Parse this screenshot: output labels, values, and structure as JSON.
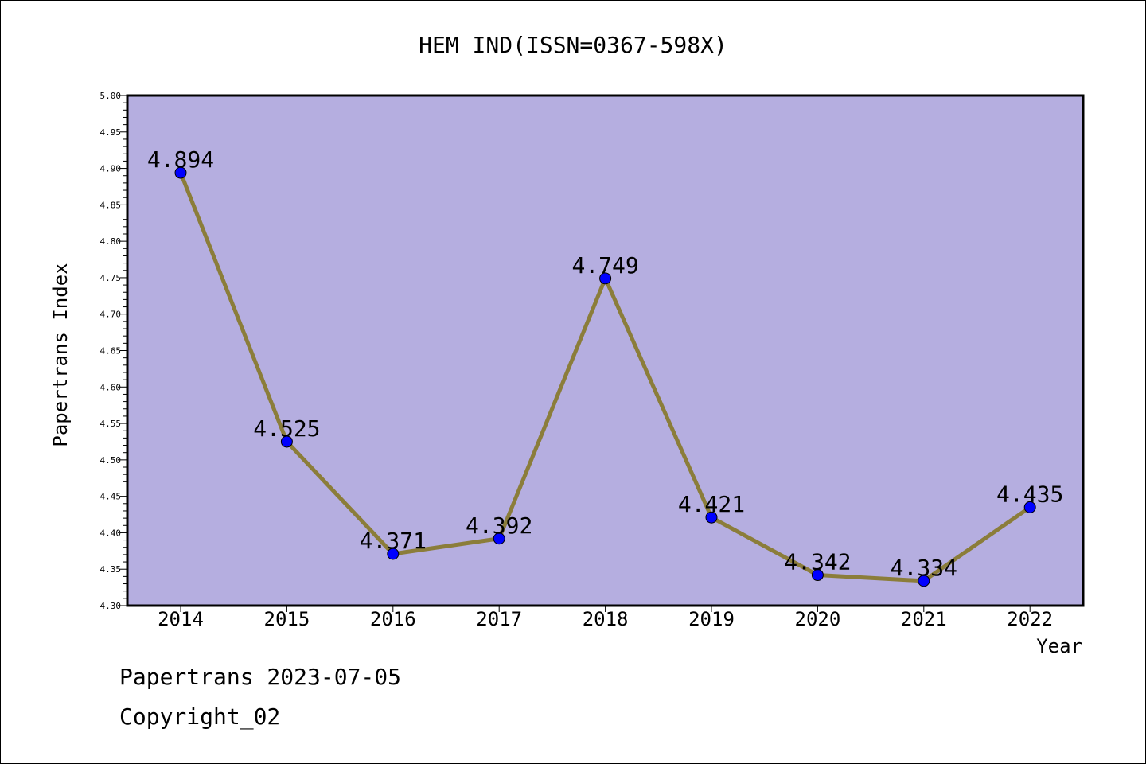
{
  "chart_data": {
    "type": "line",
    "title": "HEM IND(ISSN=0367-598X)",
    "xlabel": "Year",
    "ylabel": "Papertrans Index",
    "categories": [
      "2014",
      "2015",
      "2016",
      "2017",
      "2018",
      "2019",
      "2020",
      "2021",
      "2022"
    ],
    "series": [
      {
        "values": [
          4.894,
          4.525,
          4.371,
          4.392,
          4.749,
          4.421,
          4.342,
          4.334,
          4.435
        ],
        "data_labels": [
          "4.894",
          "4.525",
          "4.371",
          "4.392",
          "4.749",
          "4.421",
          "4.342",
          "4.334",
          "4.435"
        ]
      }
    ],
    "ylim": [
      4.3,
      5.0
    ],
    "yticks": [
      "4.30",
      "4.35",
      "4.40",
      "4.45",
      "4.50",
      "4.55",
      "4.60",
      "4.65",
      "4.70",
      "4.75",
      "4.80",
      "4.85",
      "4.90",
      "4.95",
      "5.00"
    ],
    "grid": false,
    "legend": "none",
    "colors": {
      "plot_background": "#b5aee0",
      "line": "#8b7d3a",
      "marker": "#0000ff"
    }
  },
  "footer": {
    "line1": "Papertrans 2023-07-05",
    "line2": "Copyright_02"
  }
}
